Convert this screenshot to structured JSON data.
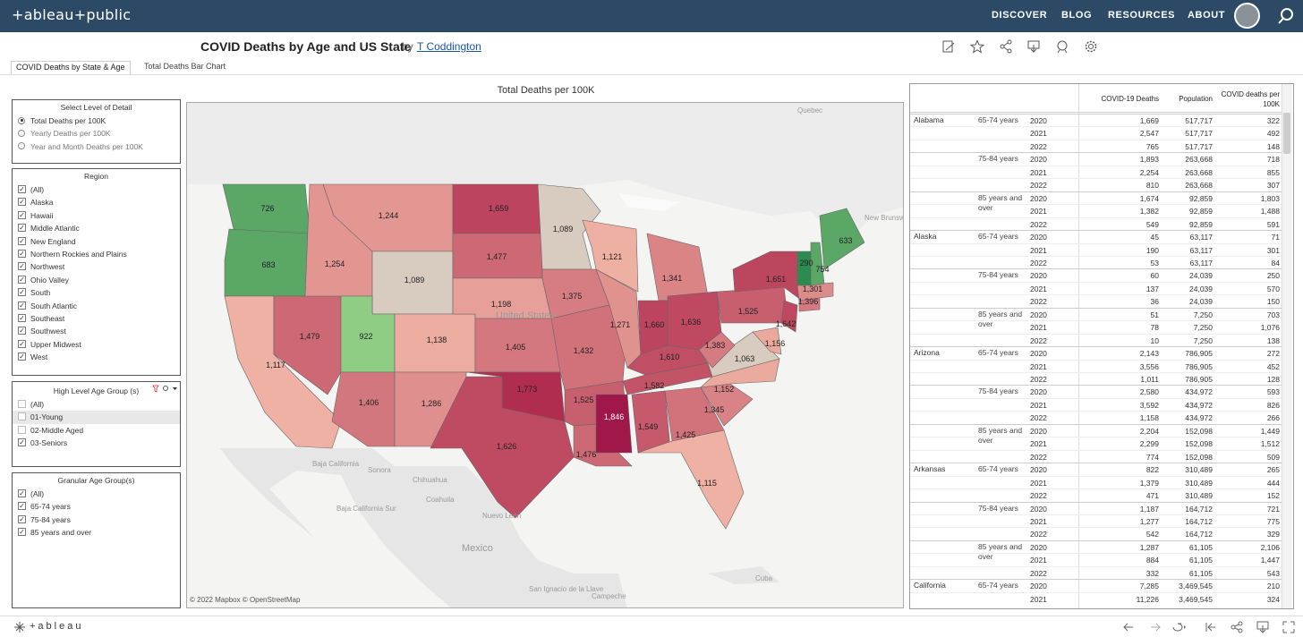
{
  "header": {
    "logo": "+ableau+public",
    "nav": [
      "DISCOVER",
      "BLOG",
      "RESOURCES",
      "ABOUT"
    ]
  },
  "viz": {
    "title": "COVID Deaths by Age and US State",
    "by": "by",
    "author": "T Coddington"
  },
  "tabs": [
    "COVID Deaths by State & Age",
    "Total Deaths Bar Chart"
  ],
  "detail": {
    "title": "Select Level of Detail",
    "options": [
      "Total Deaths per 100K",
      "Yearly Deaths per 100K",
      "Year and Month Deaths per 100K"
    ],
    "selected": 0
  },
  "region": {
    "title": "Region",
    "items": [
      "(All)",
      "Alaska",
      "Hawaii",
      "Middle Atlantic",
      "New England",
      "Northern Rockies and Plains",
      "Northwest",
      "Ohio Valley",
      "South",
      "South Atlantic",
      "Southeast",
      "Southwest",
      "Upper Midwest",
      "West"
    ],
    "checked": [
      true,
      true,
      true,
      true,
      true,
      true,
      true,
      true,
      true,
      true,
      true,
      true,
      true,
      true
    ]
  },
  "highage": {
    "title": "High Level Age Group (s)",
    "items": [
      "(All)",
      "01-Young",
      "02-Middle Aged",
      "03-Seniors"
    ],
    "checked": [
      false,
      false,
      false,
      true
    ]
  },
  "granage": {
    "title": "Granular Age Group(s)",
    "items": [
      "(All)",
      "65-74 years",
      "75-84 years",
      "85 years and over"
    ],
    "checked": [
      true,
      true,
      true,
      true
    ]
  },
  "map": {
    "title": "Total Deaths per 100K",
    "credit": "© 2022 Mapbox  © OpenStreetMap",
    "place_labels": [
      "Quebec",
      "New Brunswick",
      "United States",
      "Baja California",
      "Sonora",
      "Chihuahua",
      "Baja California Sur",
      "Nuevo Leon",
      "Mexico",
      "Campeche",
      "Cuba",
      "San Ignacio de la Llave",
      "Coahuila"
    ],
    "states": [
      {
        "code": "WA",
        "value": "726"
      },
      {
        "code": "OR",
        "value": "683"
      },
      {
        "code": "CA",
        "value": "1,117"
      },
      {
        "code": "NV",
        "value": "1,479"
      },
      {
        "code": "ID",
        "value": "1,254"
      },
      {
        "code": "MT",
        "value": "1,244"
      },
      {
        "code": "WY",
        "value": "1,089"
      },
      {
        "code": "UT",
        "value": "922"
      },
      {
        "code": "AZ",
        "value": "1,406"
      },
      {
        "code": "CO",
        "value": "1,138"
      },
      {
        "code": "NM",
        "value": "1,286"
      },
      {
        "code": "ND",
        "value": "1,659"
      },
      {
        "code": "SD",
        "value": "1,477"
      },
      {
        "code": "NE",
        "value": "1,198"
      },
      {
        "code": "KS",
        "value": "1,405"
      },
      {
        "code": "OK",
        "value": "1,773"
      },
      {
        "code": "TX",
        "value": "1,626"
      },
      {
        "code": "MN",
        "value": "1,089"
      },
      {
        "code": "IA",
        "value": "1,375"
      },
      {
        "code": "MO",
        "value": "1,432"
      },
      {
        "code": "AR",
        "value": "1,525"
      },
      {
        "code": "LA",
        "value": "1,476"
      },
      {
        "code": "WI",
        "value": "1,121"
      },
      {
        "code": "IL",
        "value": "1,271"
      },
      {
        "code": "MI",
        "value": "1,341"
      },
      {
        "code": "IN",
        "value": "1,660"
      },
      {
        "code": "OH",
        "value": "1,636"
      },
      {
        "code": "KY",
        "value": "1,610"
      },
      {
        "code": "TN",
        "value": "1,582"
      },
      {
        "code": "MS",
        "value": "1,846"
      },
      {
        "code": "AL",
        "value": "1,549"
      },
      {
        "code": "GA",
        "value": "1,425"
      },
      {
        "code": "FL",
        "value": "1,115"
      },
      {
        "code": "SC",
        "value": "1,345"
      },
      {
        "code": "NC",
        "value": "1,152"
      },
      {
        "code": "VA",
        "value": "1,063"
      },
      {
        "code": "WV",
        "value": "1,383"
      },
      {
        "code": "PA",
        "value": "1,525"
      },
      {
        "code": "NY",
        "value": "1,651"
      },
      {
        "code": "NJ",
        "value": "1,642"
      },
      {
        "code": "MD",
        "value": "1,156"
      },
      {
        "code": "CT",
        "value": "1,396"
      },
      {
        "code": "MA",
        "value": "1,301"
      },
      {
        "code": "VT",
        "value": "290"
      },
      {
        "code": "NH",
        "value": "754"
      },
      {
        "code": "ME",
        "value": "633"
      }
    ]
  },
  "table": {
    "headers": [
      "COVID-19 Deaths",
      "Population",
      "COVID deaths per 100K"
    ],
    "groups": [
      {
        "state": "Alabama",
        "ages": [
          {
            "age": "65-74 years",
            "rows": [
              [
                "2020",
                "1,669",
                "517,717",
                "322"
              ],
              [
                "2021",
                "2,547",
                "517,717",
                "492"
              ],
              [
                "2022",
                "765",
                "517,717",
                "148"
              ]
            ]
          },
          {
            "age": "75-84 years",
            "rows": [
              [
                "2020",
                "1,893",
                "263,668",
                "718"
              ],
              [
                "2021",
                "2,254",
                "263,668",
                "855"
              ],
              [
                "2022",
                "810",
                "263,668",
                "307"
              ]
            ]
          },
          {
            "age": "85 years and over",
            "rows": [
              [
                "2020",
                "1,674",
                "92,859",
                "1,803"
              ],
              [
                "2021",
                "1,382",
                "92,859",
                "1,488"
              ],
              [
                "2022",
                "549",
                "92,859",
                "591"
              ]
            ]
          }
        ]
      },
      {
        "state": "Alaska",
        "ages": [
          {
            "age": "65-74 years",
            "rows": [
              [
                "2020",
                "45",
                "63,117",
                "71"
              ],
              [
                "2021",
                "190",
                "63,117",
                "301"
              ],
              [
                "2022",
                "53",
                "63,117",
                "84"
              ]
            ]
          },
          {
            "age": "75-84 years",
            "rows": [
              [
                "2020",
                "60",
                "24,039",
                "250"
              ],
              [
                "2021",
                "137",
                "24,039",
                "570"
              ],
              [
                "2022",
                "36",
                "24,039",
                "150"
              ]
            ]
          },
          {
            "age": "85 years and over",
            "rows": [
              [
                "2020",
                "51",
                "7,250",
                "703"
              ],
              [
                "2021",
                "78",
                "7,250",
                "1,076"
              ],
              [
                "2022",
                "10",
                "7,250",
                "138"
              ]
            ]
          }
        ]
      },
      {
        "state": "Arizona",
        "ages": [
          {
            "age": "65-74 years",
            "rows": [
              [
                "2020",
                "2,143",
                "786,905",
                "272"
              ],
              [
                "2021",
                "3,556",
                "786,905",
                "452"
              ],
              [
                "2022",
                "1,011",
                "786,905",
                "128"
              ]
            ]
          },
          {
            "age": "75-84 years",
            "rows": [
              [
                "2020",
                "2,580",
                "434,972",
                "593"
              ],
              [
                "2021",
                "3,592",
                "434,972",
                "826"
              ],
              [
                "2022",
                "1,158",
                "434,972",
                "266"
              ]
            ]
          },
          {
            "age": "85 years and over",
            "rows": [
              [
                "2020",
                "2,204",
                "152,098",
                "1,449"
              ],
              [
                "2021",
                "2,299",
                "152,098",
                "1,512"
              ],
              [
                "2022",
                "774",
                "152,098",
                "509"
              ]
            ]
          }
        ]
      },
      {
        "state": "Arkansas",
        "ages": [
          {
            "age": "65-74 years",
            "rows": [
              [
                "2020",
                "822",
                "310,489",
                "265"
              ],
              [
                "2021",
                "1,379",
                "310,489",
                "444"
              ],
              [
                "2022",
                "471",
                "310,489",
                "152"
              ]
            ]
          },
          {
            "age": "75-84 years",
            "rows": [
              [
                "2020",
                "1,187",
                "164,712",
                "721"
              ],
              [
                "2021",
                "1,277",
                "164,712",
                "775"
              ],
              [
                "2022",
                "542",
                "164,712",
                "329"
              ]
            ]
          },
          {
            "age": "85 years and over",
            "rows": [
              [
                "2020",
                "1,287",
                "61,105",
                "2,106"
              ],
              [
                "2021",
                "884",
                "61,105",
                "1,447"
              ],
              [
                "2022",
                "332",
                "61,105",
                "543"
              ]
            ]
          }
        ]
      },
      {
        "state": "California",
        "ages": [
          {
            "age": "65-74 years",
            "rows": [
              [
                "2020",
                "7,285",
                "3,469,545",
                "210"
              ],
              [
                "2021",
                "11,226",
                "3,469,545",
                "324"
              ]
            ]
          }
        ]
      }
    ]
  },
  "footer": {
    "logo": "+ableau"
  }
}
